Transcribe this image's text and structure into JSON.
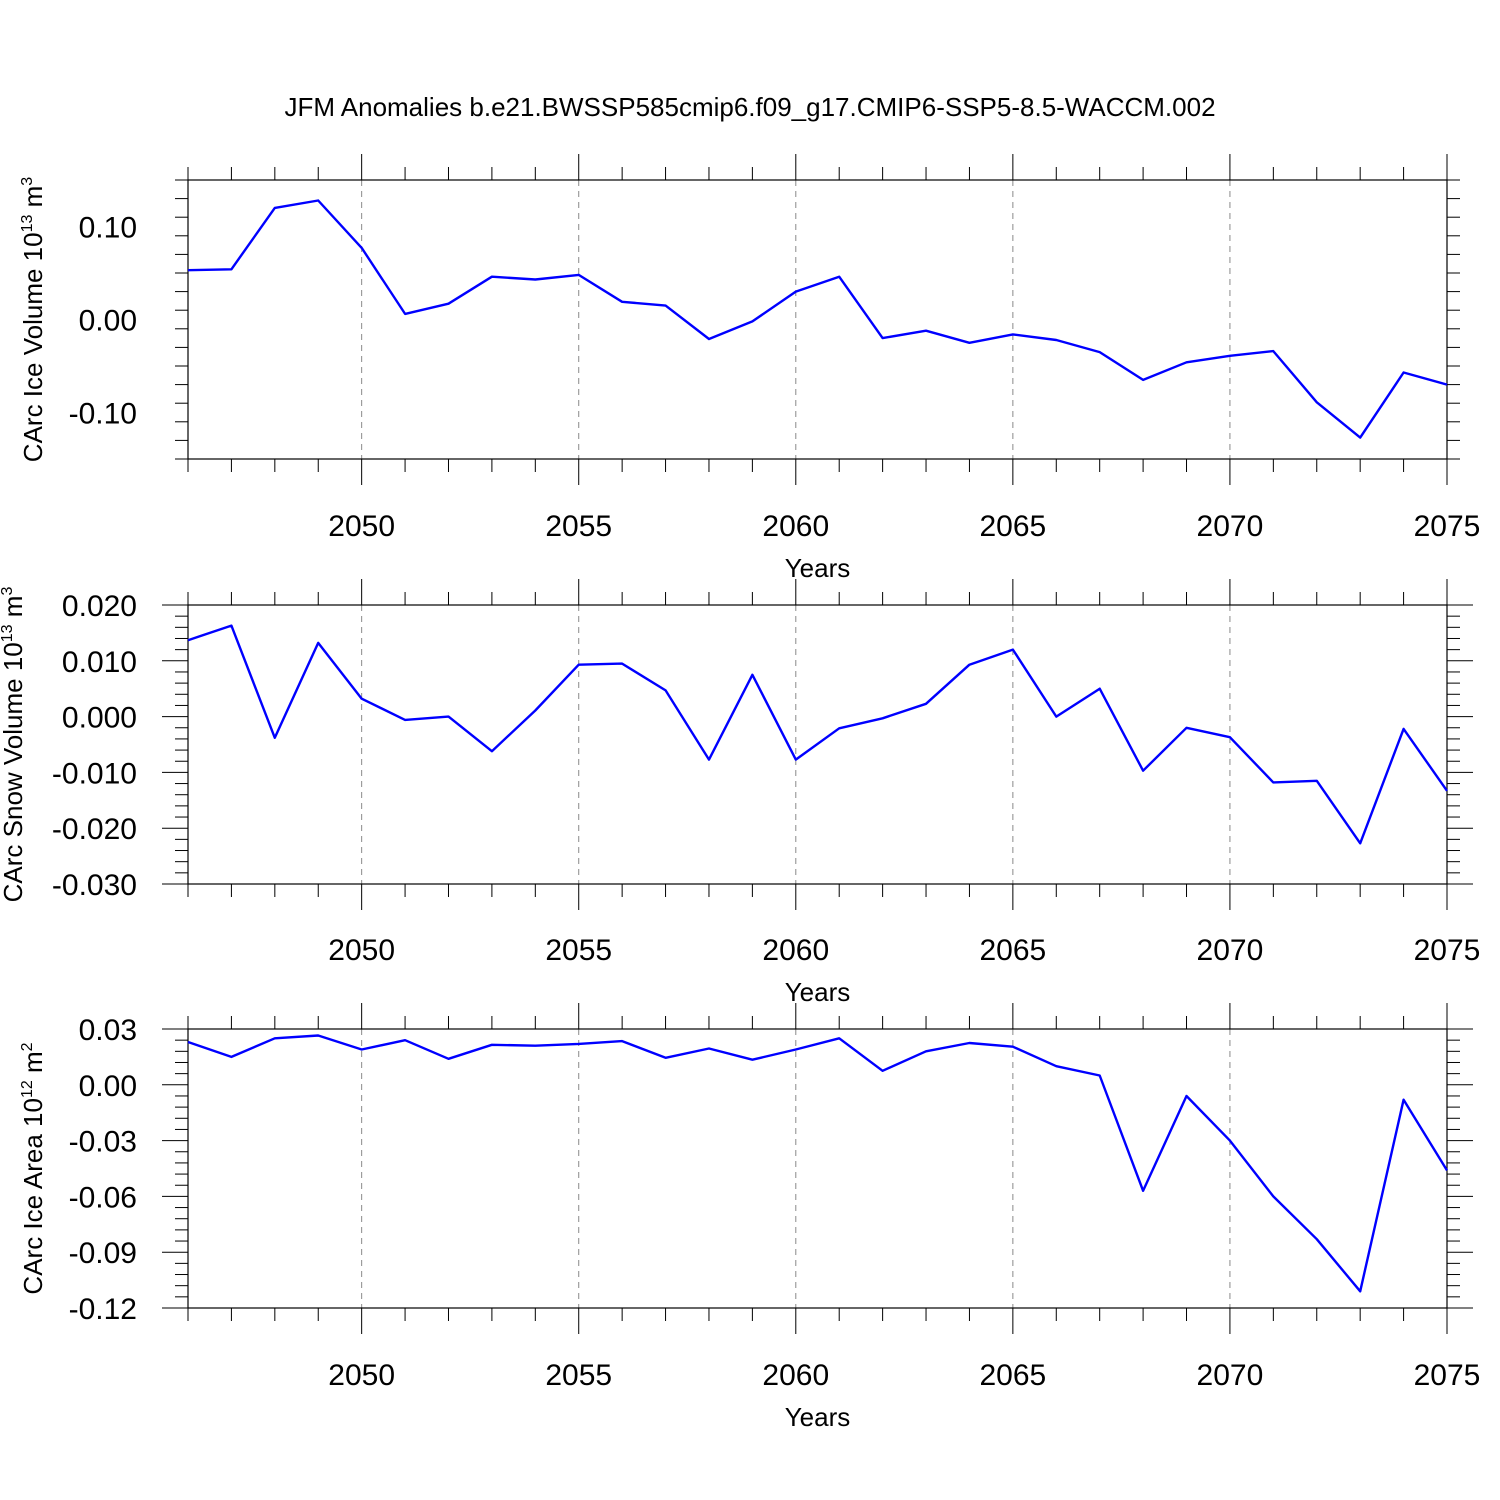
{
  "title": "JFM Anomalies b.e21.BWSSP585cmip6.f09_g17.CMIP6-SSP5-8.5-WACCM.002",
  "colors": {
    "series": "#0000ff",
    "axis": "#000000",
    "grid": "#8a8a8a"
  },
  "chart_data": [
    {
      "type": "line",
      "name": "ice-volume",
      "ylabel_main": "CArc Ice Volume 10",
      "ylabel_exp": "13",
      "ylabel_unit": " m",
      "ylabel_unit_exp": "3",
      "xlabel": "Years",
      "xlim": [
        2046,
        2075
      ],
      "ylim": [
        -0.15,
        0.15
      ],
      "x_ticks": [
        "2050",
        "2055",
        "2060",
        "2065",
        "2070",
        "2075"
      ],
      "y_ticks": [
        "-0.10",
        "0.00",
        "0.10"
      ],
      "x": [
        2046,
        2047,
        2048,
        2049,
        2050,
        2051,
        2052,
        2053,
        2054,
        2055,
        2056,
        2057,
        2058,
        2059,
        2060,
        2061,
        2062,
        2063,
        2064,
        2065,
        2066,
        2067,
        2068,
        2069,
        2070,
        2071,
        2072,
        2073,
        2074,
        2075
      ],
      "values": [
        0.053,
        0.054,
        0.12,
        0.128,
        0.077,
        0.006,
        0.017,
        0.046,
        0.043,
        0.048,
        0.019,
        0.015,
        -0.021,
        -0.002,
        0.03,
        0.046,
        -0.02,
        -0.012,
        -0.025,
        -0.016,
        -0.022,
        -0.035,
        -0.065,
        -0.046,
        -0.039,
        -0.034,
        -0.089,
        -0.127,
        -0.057,
        -0.07
      ]
    },
    {
      "type": "line",
      "name": "snow-volume",
      "ylabel_main": "CArc Snow Volume 10",
      "ylabel_exp": "13",
      "ylabel_unit": " m",
      "ylabel_unit_exp": "3",
      "xlabel": "Years",
      "xlim": [
        2046,
        2075
      ],
      "ylim": [
        -0.03,
        0.02
      ],
      "x_ticks": [
        "2050",
        "2055",
        "2060",
        "2065",
        "2070",
        "2075"
      ],
      "y_ticks": [
        "-0.030",
        "-0.020",
        "-0.010",
        "0.000",
        "0.010",
        "0.020"
      ],
      "x": [
        2046,
        2047,
        2048,
        2049,
        2050,
        2051,
        2052,
        2053,
        2054,
        2055,
        2056,
        2057,
        2058,
        2059,
        2060,
        2061,
        2062,
        2063,
        2064,
        2065,
        2066,
        2067,
        2068,
        2069,
        2070,
        2071,
        2072,
        2073,
        2074,
        2075
      ],
      "values": [
        0.0137,
        0.0163,
        -0.0038,
        0.0132,
        0.0032,
        -0.0006,
        0.0,
        -0.0062,
        0.0011,
        0.0093,
        0.0095,
        0.0047,
        -0.0077,
        0.0075,
        -0.0077,
        -0.0021,
        -0.0003,
        0.0023,
        0.0093,
        0.012,
        0.0,
        0.005,
        -0.0097,
        -0.002,
        -0.0037,
        -0.0118,
        -0.0115,
        -0.0227,
        -0.0022,
        -0.0133
      ]
    },
    {
      "type": "line",
      "name": "ice-area",
      "ylabel_main": "CArc Ice Area 10",
      "ylabel_exp": "12",
      "ylabel_unit": " m",
      "ylabel_unit_exp": "2",
      "xlabel": "Years",
      "xlim": [
        2046,
        2075
      ],
      "ylim": [
        -0.12,
        0.03
      ],
      "x_ticks": [
        "2050",
        "2055",
        "2060",
        "2065",
        "2070",
        "2075"
      ],
      "y_ticks": [
        "-0.12",
        "-0.09",
        "-0.06",
        "-0.03",
        "0.00",
        "0.03"
      ],
      "x": [
        2046,
        2047,
        2048,
        2049,
        2050,
        2051,
        2052,
        2053,
        2054,
        2055,
        2056,
        2057,
        2058,
        2059,
        2060,
        2061,
        2062,
        2063,
        2064,
        2065,
        2066,
        2067,
        2068,
        2069,
        2070,
        2071,
        2072,
        2073,
        2074,
        2075
      ],
      "values": [
        0.023,
        0.015,
        0.025,
        0.0265,
        0.019,
        0.024,
        0.014,
        0.0215,
        0.021,
        0.022,
        0.0235,
        0.0145,
        0.0195,
        0.0135,
        0.019,
        0.025,
        0.0075,
        0.018,
        0.0225,
        0.0205,
        0.01,
        0.005,
        -0.057,
        -0.006,
        -0.03,
        -0.06,
        -0.083,
        -0.111,
        -0.008,
        -0.046
      ]
    }
  ]
}
